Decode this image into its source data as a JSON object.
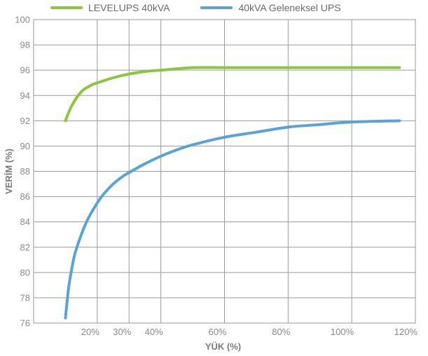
{
  "chart_data": {
    "type": "line",
    "title": "",
    "xlabel": "YÜK (%)",
    "ylabel": "VERİM (%)",
    "xlim": [
      0,
      120
    ],
    "ylim": [
      76,
      100
    ],
    "x_ticks": [
      {
        "value": 20,
        "label": "20%"
      },
      {
        "value": 30,
        "label": "30%"
      },
      {
        "value": 40,
        "label": "40%"
      },
      {
        "value": 60,
        "label": "60%"
      },
      {
        "value": 80,
        "label": "80%"
      },
      {
        "value": 100,
        "label": "100%"
      },
      {
        "value": 120,
        "label": "120%"
      }
    ],
    "y_ticks": [
      76,
      78,
      80,
      82,
      84,
      86,
      88,
      90,
      92,
      94,
      96,
      98,
      100
    ],
    "grid": true,
    "legend_position": "top",
    "series": [
      {
        "name": "LEVELUPS 40kVA",
        "color": "#8cc63f",
        "x": [
          10,
          12,
          15,
          18,
          20,
          25,
          30,
          35,
          40,
          50,
          60,
          70,
          80,
          90,
          100,
          115
        ],
        "y": [
          92.0,
          93.2,
          94.3,
          94.8,
          95.0,
          95.4,
          95.7,
          95.9,
          96.0,
          96.2,
          96.2,
          96.2,
          96.2,
          96.2,
          96.2,
          96.2
        ]
      },
      {
        "name": "40kVA Geleneksel UPS",
        "color": "#5ba4d1",
        "x": [
          10,
          11,
          12,
          13,
          15,
          17,
          20,
          22,
          25,
          28,
          30,
          35,
          40,
          45,
          50,
          60,
          70,
          80,
          90,
          100,
          115
        ],
        "y": [
          76.4,
          78.8,
          80.3,
          81.5,
          83.0,
          84.2,
          85.5,
          86.2,
          87.0,
          87.6,
          87.9,
          88.6,
          89.2,
          89.7,
          90.1,
          90.7,
          91.1,
          91.5,
          91.7,
          91.9,
          92.0
        ]
      }
    ]
  }
}
